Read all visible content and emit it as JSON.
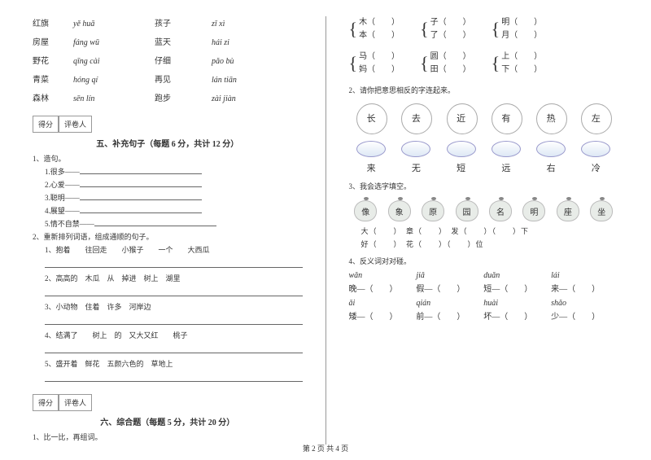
{
  "left": {
    "pinyin_rows": [
      {
        "hz": "红旗",
        "py1": "yě huā",
        "hz2": "孩子",
        "py2": "zǐ xì"
      },
      {
        "hz": "房屋",
        "py1": "fáng wū",
        "hz2": "蓝天",
        "py2": "hái zi"
      },
      {
        "hz": "野花",
        "py1": "qīng cài",
        "hz2": "仔细",
        "py2": "pǎo bù"
      },
      {
        "hz": "青菜",
        "py1": "hóng qí",
        "hz2": "再见",
        "py2": "lán tiān"
      },
      {
        "hz": "森林",
        "py1": "sēn lín",
        "hz2": "跑步",
        "py2": "zài jiàn"
      }
    ],
    "score_labels": {
      "a": "得分",
      "b": "评卷人"
    },
    "section5": "五、补充句子（每题 6 分，共计 12 分）",
    "q1_title": "1、造句。",
    "q1_items": [
      "1.很多——",
      "2.心爱——",
      "3.聪明——",
      "4.展望——",
      "5.情不自禁——"
    ],
    "q2_title": "2、重新排列词语，组成通顺的句子。",
    "q2_items": [
      "1、抱着　　往回走　　小猴子　　一个　　大西瓜",
      "2、高高的　木瓜　从　掉进　树上　湖里",
      "3、小动物　住着　许多　河岸边",
      "4、结满了　　树上　的　又大又红　　桃子",
      "5、盛开着　鲜花　五颜六色的　草地上"
    ],
    "section6": "六、综合题（每题 5 分，共计 20 分）",
    "q6_1": "1、比一比，再组词。"
  },
  "right": {
    "brackets": [
      [
        {
          "a": "木（",
          "b": "本（"
        },
        {
          "a": "子（",
          "b": "了（"
        },
        {
          "a": "明（",
          "b": "月（"
        }
      ],
      [
        {
          "a": "马（",
          "b": "妈（"
        },
        {
          "a": "圆（",
          "b": "田（"
        },
        {
          "a": "上（",
          "b": "下（"
        }
      ]
    ],
    "q2": "2、请你把意思相反的字连起来。",
    "flowers": [
      "长",
      "去",
      "近",
      "有",
      "热",
      "左"
    ],
    "chars": [
      "来",
      "无",
      "短",
      "远",
      "右",
      "冷"
    ],
    "q3": "3、我会选字填空。",
    "apples": [
      "像",
      "象",
      "原",
      "园",
      "名",
      "明",
      "座",
      "坐"
    ],
    "fill1": "大（　　）　章（　　）　发（　　）（　　）下",
    "fill2": "好（　　）　花（　　）（　　）位",
    "q4": "4、反义词对对碰。",
    "antonyms": [
      [
        {
          "py": "wǎn",
          "t": "晚—（　　）"
        },
        {
          "py": "jiǎ",
          "t": "假—（　　）"
        },
        {
          "py": "duǎn",
          "t": "短—（　　）"
        },
        {
          "py": "lái",
          "t": "来—（　　）"
        }
      ],
      [
        {
          "py": "ǎi",
          "t": "矮—（　　）"
        },
        {
          "py": "qián",
          "t": "前—（　　）"
        },
        {
          "py": "huài",
          "t": "坏—（　　）"
        },
        {
          "py": "shǎo",
          "t": "少—（　　）"
        }
      ]
    ]
  },
  "footer": "第 2 页 共 4 页"
}
